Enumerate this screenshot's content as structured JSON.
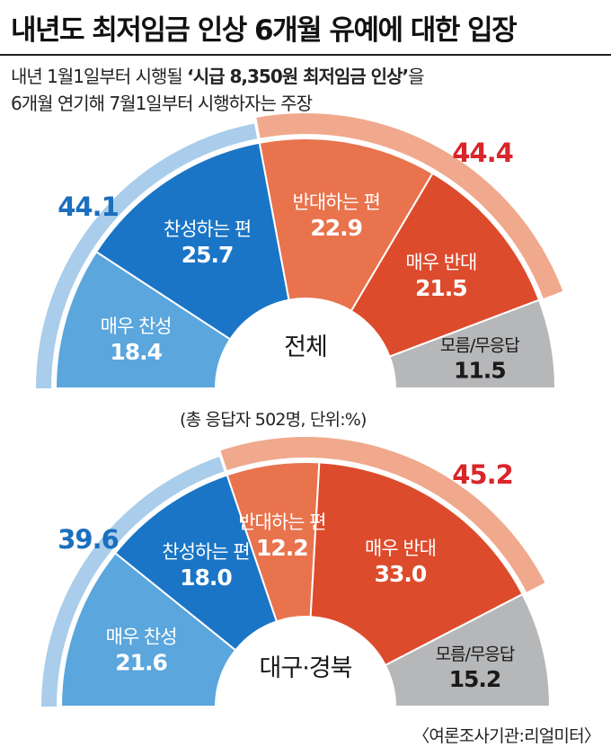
{
  "header": {
    "title": "내년도 최저임금 인상 6개월 유예에 대한 입장",
    "subtitle_line1_pre": "내년 1월1일부터 시행될 ",
    "subtitle_line1_bold": "‘시급 8,350원 최저임금 인상’",
    "subtitle_line1_post": "을",
    "subtitle_line2": "6개월 연기해 7월1일부터 시행하자는 주장"
  },
  "note": "(총 응답자 502명, 단위:%)",
  "source": "〈여론조사기관:리얼미터〉",
  "colors": {
    "strong_for": "#5aa6dd",
    "for": "#1a75c6",
    "against": "#e8734d",
    "strong_against": "#dd4b2d",
    "unknown": "#b6b7b9",
    "agree_band": "#a9cdea",
    "disagree_band": "#f0a98d",
    "agree_total_text": "#1b6fbe",
    "disagree_total_text": "#d8262a"
  },
  "chart_data": [
    {
      "type": "pie",
      "subtype": "semi-donut",
      "center_label": "전체",
      "categories": [
        "매우 찬성",
        "찬성하는 편",
        "반대하는 편",
        "매우 반대",
        "모름/무응답"
      ],
      "values": [
        18.4,
        25.7,
        22.9,
        21.5,
        11.5
      ],
      "value_labels": [
        "18.4",
        "25.7",
        "22.9",
        "21.5",
        "11.5"
      ],
      "totals": {
        "agree": 44.1,
        "disagree": 44.4
      },
      "total_labels": {
        "agree": "44.1",
        "disagree": "44.4"
      }
    },
    {
      "type": "pie",
      "subtype": "semi-donut",
      "center_label": "대구·경북",
      "categories": [
        "매우 찬성",
        "찬성하는 편",
        "반대하는 편",
        "매우 반대",
        "모름/무응답"
      ],
      "values": [
        21.6,
        18.0,
        12.2,
        33.0,
        15.2
      ],
      "value_labels": [
        "21.6",
        "18.0",
        "12.2",
        "33.0",
        "15.2"
      ],
      "totals": {
        "agree": 39.6,
        "disagree": 45.2
      },
      "total_labels": {
        "agree": "39.6",
        "disagree": "45.2"
      }
    }
  ]
}
